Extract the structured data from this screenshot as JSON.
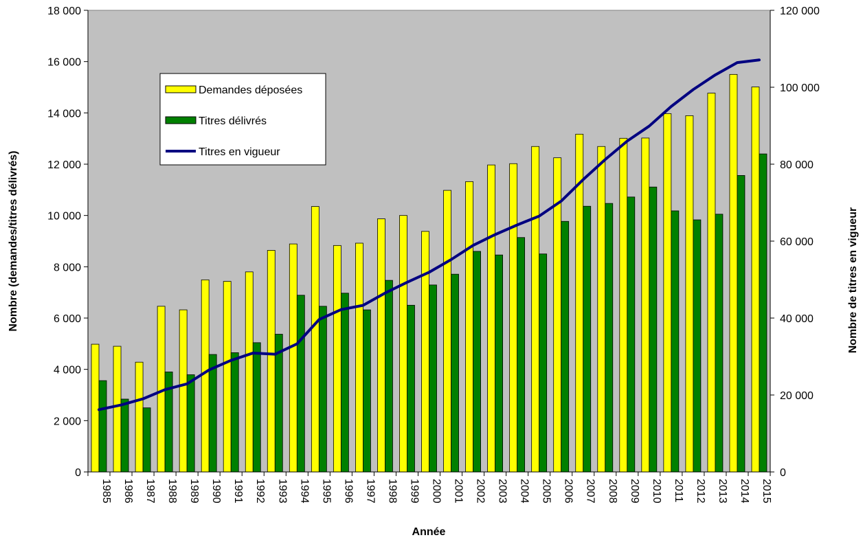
{
  "chart_data": {
    "type": "bar",
    "categories": [
      "1985",
      "1986",
      "1987",
      "1988",
      "1989",
      "1990",
      "1991",
      "1992",
      "1993",
      "1994",
      "1995",
      "1996",
      "1997",
      "1998",
      "1999",
      "2000",
      "2001",
      "2002",
      "2003",
      "2004",
      "2005",
      "2006",
      "2007",
      "2008",
      "2009",
      "2010",
      "2011",
      "2012",
      "2013",
      "2014",
      "2015"
    ],
    "series": [
      {
        "name": "Demandes déposées",
        "type": "bar",
        "axis": "left",
        "color": "#ffff00",
        "values": [
          4980,
          4900,
          4280,
          6460,
          6320,
          7490,
          7430,
          7800,
          8640,
          8890,
          10350,
          8830,
          8920,
          9870,
          10000,
          9380,
          10980,
          11320,
          11970,
          12020,
          12690,
          12250,
          13170,
          12690,
          13010,
          13020,
          13970,
          13890,
          14770,
          15500,
          15010
        ]
      },
      {
        "name": "Titres délivrés",
        "type": "bar",
        "axis": "left",
        "color": "#008000",
        "values": [
          3560,
          2840,
          2500,
          3900,
          3790,
          4580,
          4650,
          5040,
          5370,
          6890,
          6460,
          6970,
          6320,
          7470,
          6500,
          7290,
          7710,
          8600,
          8460,
          9140,
          8500,
          9770,
          10360,
          10470,
          10720,
          11110,
          10180,
          9830,
          10050,
          11560,
          12400
        ]
      },
      {
        "name": "Titres en vigueur",
        "type": "line",
        "axis": "right",
        "color": "#000080",
        "values": [
          16200,
          17400,
          19000,
          21400,
          22900,
          26500,
          29000,
          30900,
          30600,
          33300,
          39600,
          42200,
          43300,
          46500,
          49300,
          51900,
          55200,
          58900,
          61700,
          64200,
          66500,
          70400,
          76000,
          81200,
          86000,
          89900,
          95000,
          99400,
          103200,
          106400,
          107100
        ]
      }
    ],
    "title": "",
    "xlabel": "Année",
    "ylabel": "Nombre (demandes/titres délivrés)",
    "y2label": "Nombre de titres en vigueur",
    "ylim": [
      0,
      18000
    ],
    "y2lim": [
      0,
      120000
    ],
    "yticks": [
      "0",
      "2 000",
      "4 000",
      "6 000",
      "8 000",
      "10 000",
      "12 000",
      "14 000",
      "16 000",
      "18 000"
    ],
    "y2ticks": [
      "0",
      "20 000",
      "40 000",
      "60 000",
      "80 000",
      "100 000",
      "120 000"
    ],
    "plot_background": "#c0c0c0",
    "legend_position": "top-left",
    "grid": false
  }
}
